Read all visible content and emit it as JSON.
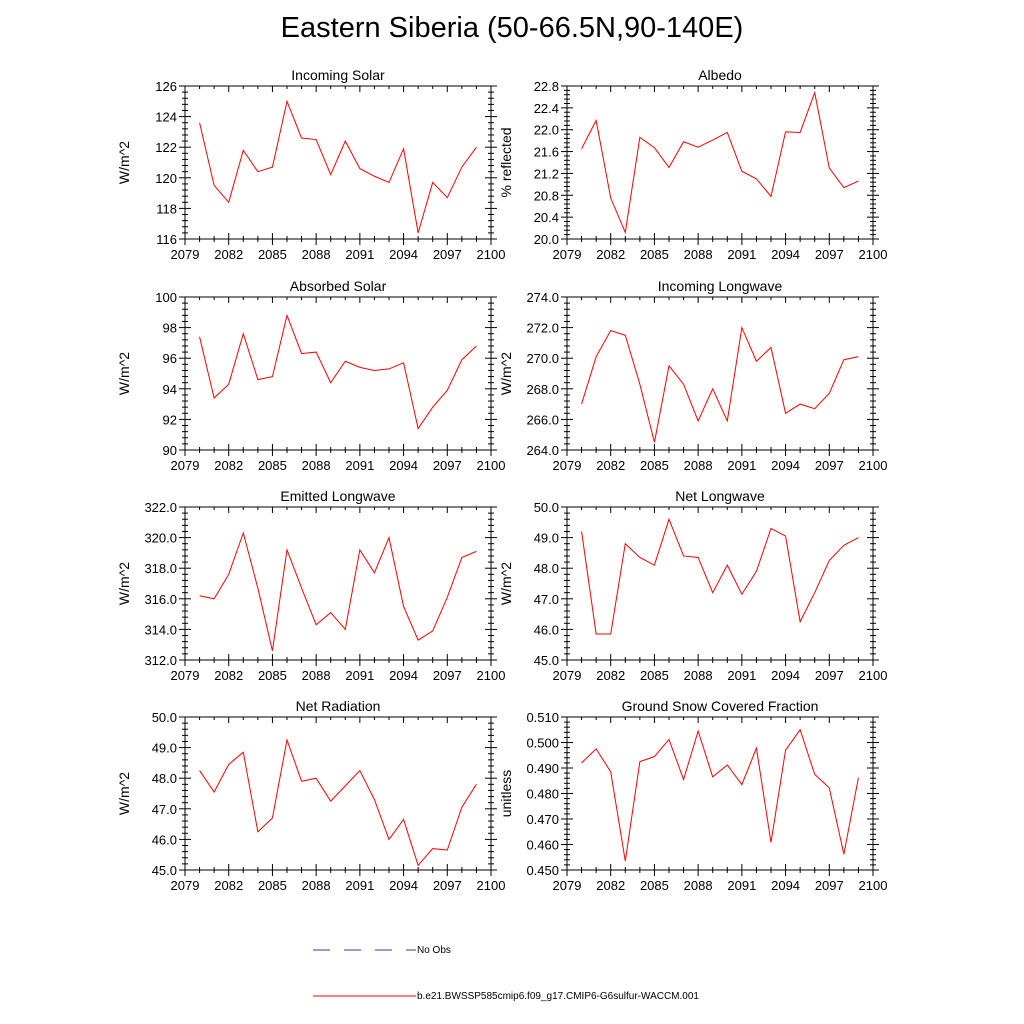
{
  "figure": {
    "title": "Eastern Siberia (50-66.5N,90-140E)",
    "legend": [
      {
        "label": "No Obs",
        "color": "#3040a0",
        "style": "dashed"
      },
      {
        "label": "b.e21.BWSSP585cmip6.f09_g17.CMIP6-G6sulfur-WACCM.001",
        "color": "#ff0000",
        "style": "solid"
      }
    ]
  },
  "chart_data": [
    {
      "type": "line",
      "title": "Incoming Solar",
      "ylabel": "W/m^2",
      "xlim": [
        2079,
        2100
      ],
      "ylim": [
        116,
        126
      ],
      "xticks": [
        "2079",
        "2082",
        "2085",
        "2088",
        "2091",
        "2094",
        "2097",
        "2100"
      ],
      "yticks": [
        "116",
        "118",
        "120",
        "122",
        "124",
        "126"
      ],
      "x": [
        2080,
        2081,
        2082,
        2083,
        2084,
        2085,
        2086,
        2087,
        2088,
        2089,
        2090,
        2091,
        2092,
        2093,
        2094,
        2095,
        2096,
        2097,
        2098,
        2099
      ],
      "series": [
        {
          "name": "b.e21.BWSSP585cmip6.f09_g17.CMIP6-G6sulfur-WACCM.001",
          "color": "#ff0000",
          "values": [
            123.6,
            119.5,
            118.4,
            121.8,
            120.4,
            120.7,
            125.0,
            122.6,
            122.5,
            120.2,
            122.4,
            120.6,
            120.1,
            119.7,
            121.9,
            116.4,
            119.7,
            118.7,
            120.7,
            122.0
          ]
        }
      ]
    },
    {
      "type": "line",
      "title": "Albedo",
      "ylabel": "% reflected",
      "xlim": [
        2079,
        2100
      ],
      "ylim": [
        20.0,
        22.8
      ],
      "xticks": [
        "2079",
        "2082",
        "2085",
        "2088",
        "2091",
        "2094",
        "2097",
        "2100"
      ],
      "yticks": [
        "20.0",
        "20.4",
        "20.8",
        "21.2",
        "21.6",
        "22.0",
        "22.4",
        "22.8"
      ],
      "x": [
        2080,
        2081,
        2082,
        2083,
        2084,
        2085,
        2086,
        2087,
        2088,
        2089,
        2090,
        2091,
        2092,
        2093,
        2094,
        2095,
        2096,
        2097,
        2098,
        2099
      ],
      "series": [
        {
          "name": "b.e21.BWSSP585cmip6.f09_g17.CMIP6-G6sulfur-WACCM.001",
          "color": "#ff0000",
          "values": [
            21.65,
            22.17,
            20.75,
            20.12,
            21.86,
            21.67,
            21.31,
            21.78,
            21.68,
            21.81,
            21.95,
            21.24,
            21.1,
            20.78,
            21.96,
            21.95,
            22.68,
            21.3,
            20.94,
            21.06
          ]
        }
      ]
    },
    {
      "type": "line",
      "title": "Absorbed Solar",
      "ylabel": "W/m^2",
      "xlim": [
        2079,
        2100
      ],
      "ylim": [
        90,
        100
      ],
      "xticks": [
        "2079",
        "2082",
        "2085",
        "2088",
        "2091",
        "2094",
        "2097",
        "2100"
      ],
      "yticks": [
        "90",
        "92",
        "94",
        "96",
        "98",
        "100"
      ],
      "x": [
        2080,
        2081,
        2082,
        2083,
        2084,
        2085,
        2086,
        2087,
        2088,
        2089,
        2090,
        2091,
        2092,
        2093,
        2094,
        2095,
        2096,
        2097,
        2098,
        2099
      ],
      "series": [
        {
          "name": "b.e21.BWSSP585cmip6.f09_g17.CMIP6-G6sulfur-WACCM.001",
          "color": "#ff0000",
          "values": [
            97.4,
            93.4,
            94.3,
            97.6,
            94.6,
            94.8,
            98.8,
            96.3,
            96.4,
            94.4,
            95.8,
            95.4,
            95.2,
            95.3,
            95.7,
            91.4,
            92.8,
            93.9,
            95.9,
            96.8
          ]
        }
      ]
    },
    {
      "type": "line",
      "title": "Incoming Longwave",
      "ylabel": "W/m^2",
      "xlim": [
        2079,
        2100
      ],
      "ylim": [
        264.0,
        274.0
      ],
      "xticks": [
        "2079",
        "2082",
        "2085",
        "2088",
        "2091",
        "2094",
        "2097",
        "2100"
      ],
      "yticks": [
        "264.0",
        "266.0",
        "268.0",
        "270.0",
        "272.0",
        "274.0"
      ],
      "x": [
        2080,
        2081,
        2082,
        2083,
        2084,
        2085,
        2086,
        2087,
        2088,
        2089,
        2090,
        2091,
        2092,
        2093,
        2094,
        2095,
        2096,
        2097,
        2098,
        2099
      ],
      "series": [
        {
          "name": "b.e21.BWSSP585cmip6.f09_g17.CMIP6-G6sulfur-WACCM.001",
          "color": "#ff0000",
          "values": [
            267.0,
            270.1,
            271.8,
            271.5,
            268.3,
            264.5,
            269.5,
            268.3,
            265.9,
            268.0,
            265.9,
            272.0,
            269.8,
            270.7,
            266.4,
            267.0,
            266.7,
            267.7,
            269.9,
            270.1
          ]
        }
      ]
    },
    {
      "type": "line",
      "title": "Emitted Longwave",
      "ylabel": "W/m^2",
      "xlim": [
        2079,
        2100
      ],
      "ylim": [
        312.0,
        322.0
      ],
      "xticks": [
        "2079",
        "2082",
        "2085",
        "2088",
        "2091",
        "2094",
        "2097",
        "2100"
      ],
      "yticks": [
        "312.0",
        "314.0",
        "316.0",
        "318.0",
        "320.0",
        "322.0"
      ],
      "x": [
        2080,
        2081,
        2082,
        2083,
        2084,
        2085,
        2086,
        2087,
        2088,
        2089,
        2090,
        2091,
        2092,
        2093,
        2094,
        2095,
        2096,
        2097,
        2098,
        2099
      ],
      "series": [
        {
          "name": "b.e21.BWSSP585cmip6.f09_g17.CMIP6-G6sulfur-WACCM.001",
          "color": "#ff0000",
          "values": [
            316.2,
            316.0,
            317.6,
            320.3,
            316.7,
            312.6,
            319.2,
            316.7,
            314.3,
            315.1,
            314.0,
            319.2,
            317.7,
            320.0,
            315.5,
            313.3,
            313.9,
            316.1,
            318.7,
            319.1
          ]
        }
      ]
    },
    {
      "type": "line",
      "title": "Net Longwave",
      "ylabel": "W/m^2",
      "xlim": [
        2079,
        2100
      ],
      "ylim": [
        45.0,
        50.0
      ],
      "xticks": [
        "2079",
        "2082",
        "2085",
        "2088",
        "2091",
        "2094",
        "2097",
        "2100"
      ],
      "yticks": [
        "45.0",
        "46.0",
        "47.0",
        "48.0",
        "49.0",
        "50.0"
      ],
      "x": [
        2080,
        2081,
        2082,
        2083,
        2084,
        2085,
        2086,
        2087,
        2088,
        2089,
        2090,
        2091,
        2092,
        2093,
        2094,
        2095,
        2096,
        2097,
        2098,
        2099
      ],
      "series": [
        {
          "name": "b.e21.BWSSP585cmip6.f09_g17.CMIP6-G6sulfur-WACCM.001",
          "color": "#ff0000",
          "values": [
            49.2,
            45.85,
            45.85,
            48.8,
            48.35,
            48.1,
            49.6,
            48.4,
            48.35,
            47.2,
            48.1,
            47.15,
            47.9,
            49.3,
            49.05,
            46.25,
            47.2,
            48.25,
            48.75,
            49.0
          ]
        }
      ]
    },
    {
      "type": "line",
      "title": "Net Radiation",
      "ylabel": "W/m^2",
      "xlim": [
        2079,
        2100
      ],
      "ylim": [
        45.0,
        50.0
      ],
      "xticks": [
        "2079",
        "2082",
        "2085",
        "2088",
        "2091",
        "2094",
        "2097",
        "2100"
      ],
      "yticks": [
        "45.0",
        "46.0",
        "47.0",
        "48.0",
        "49.0",
        "50.0"
      ],
      "x": [
        2080,
        2081,
        2082,
        2083,
        2084,
        2085,
        2086,
        2087,
        2088,
        2089,
        2090,
        2091,
        2092,
        2093,
        2094,
        2095,
        2096,
        2097,
        2098,
        2099
      ],
      "series": [
        {
          "name": "b.e21.BWSSP585cmip6.f09_g17.CMIP6-G6sulfur-WACCM.001",
          "color": "#ff0000",
          "values": [
            48.25,
            47.55,
            48.45,
            48.85,
            46.25,
            46.7,
            49.25,
            47.9,
            48.0,
            47.25,
            47.75,
            48.25,
            47.3,
            46.0,
            46.65,
            45.15,
            45.7,
            45.65,
            47.05,
            47.8
          ]
        }
      ]
    },
    {
      "type": "line",
      "title": "Ground Snow Covered Fraction",
      "ylabel": "unitless",
      "xlim": [
        2079,
        2100
      ],
      "ylim": [
        0.45,
        0.51
      ],
      "xticks": [
        "2079",
        "2082",
        "2085",
        "2088",
        "2091",
        "2094",
        "2097",
        "2100"
      ],
      "yticks": [
        "0.450",
        "0.460",
        "0.470",
        "0.480",
        "0.490",
        "0.500",
        "0.510"
      ],
      "x": [
        2080,
        2081,
        2082,
        2083,
        2084,
        2085,
        2086,
        2087,
        2088,
        2089,
        2090,
        2091,
        2092,
        2093,
        2094,
        2095,
        2096,
        2097,
        2098,
        2099
      ],
      "series": [
        {
          "name": "b.e21.BWSSP585cmip6.f09_g17.CMIP6-G6sulfur-WACCM.001",
          "color": "#ff0000",
          "values": [
            0.492,
            0.4975,
            0.4885,
            0.4535,
            0.4925,
            0.4945,
            0.5012,
            0.4855,
            0.5045,
            0.4865,
            0.4912,
            0.4835,
            0.4978,
            0.4608,
            0.497,
            0.505,
            0.4875,
            0.4822,
            0.4562,
            0.4862
          ]
        }
      ]
    }
  ]
}
